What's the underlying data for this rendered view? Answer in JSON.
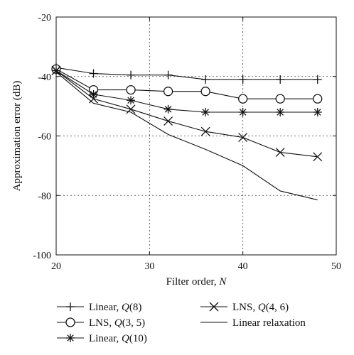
{
  "chart_data": {
    "type": "line",
    "title": "",
    "xlabel": "Filter order, N",
    "xlabel_parts": {
      "prefix": "Filter order, ",
      "italic": "N"
    },
    "ylabel": "Approximation error (dB)",
    "xlim": [
      20,
      50
    ],
    "ylim": [
      -100,
      -20
    ],
    "xticks": [
      20,
      30,
      40,
      50
    ],
    "yticks": [
      -20,
      -40,
      -60,
      -80,
      -100
    ],
    "grid": true,
    "legend_position": "below plot, two columns",
    "series": [
      {
        "name": "Linear, Q(8)",
        "legend_label": {
          "prefix": "Linear, ",
          "q": "Q",
          "args": "(8)"
        },
        "marker": "plus",
        "x": [
          20,
          24,
          28,
          32,
          36,
          40,
          44,
          48
        ],
        "y": [
          -37,
          -39,
          -39.5,
          -39.5,
          -41,
          -41,
          -41,
          -41
        ]
      },
      {
        "name": "LNS, Q(3, 5)",
        "legend_label": {
          "prefix": "LNS, ",
          "q": "Q",
          "args": "(3, 5)"
        },
        "marker": "circle",
        "x": [
          20,
          24,
          28,
          32,
          36,
          40,
          44,
          48
        ],
        "y": [
          -37.5,
          -44.5,
          -44.5,
          -45,
          -45,
          -47.5,
          -47.5,
          -47.5
        ]
      },
      {
        "name": "Linear, Q(10)",
        "legend_label": {
          "prefix": "Linear, ",
          "q": "Q",
          "args": "(10)"
        },
        "marker": "asterisk",
        "x": [
          20,
          24,
          28,
          32,
          36,
          40,
          44,
          48
        ],
        "y": [
          -38,
          -46,
          -48,
          -51,
          -52,
          -52,
          -52,
          -52
        ]
      },
      {
        "name": "LNS, Q(4, 6)",
        "legend_label": {
          "prefix": "LNS, ",
          "q": "Q",
          "args": "(4, 6)"
        },
        "marker": "cross",
        "x": [
          20,
          24,
          28,
          32,
          36,
          40,
          44,
          48
        ],
        "y": [
          -38,
          -47.5,
          -51,
          -55,
          -58.5,
          -60.5,
          -65.5,
          -67
        ]
      },
      {
        "name": "Linear relaxation",
        "legend_label": {
          "prefix": "Linear relaxation",
          "q": "",
          "args": ""
        },
        "marker": "none",
        "x": [
          20,
          24,
          28,
          32,
          36,
          40,
          44,
          48
        ],
        "y": [
          -38.5,
          -49,
          -52,
          -59.5,
          -64.5,
          -70,
          -78.5,
          -81.5
        ]
      }
    ]
  }
}
